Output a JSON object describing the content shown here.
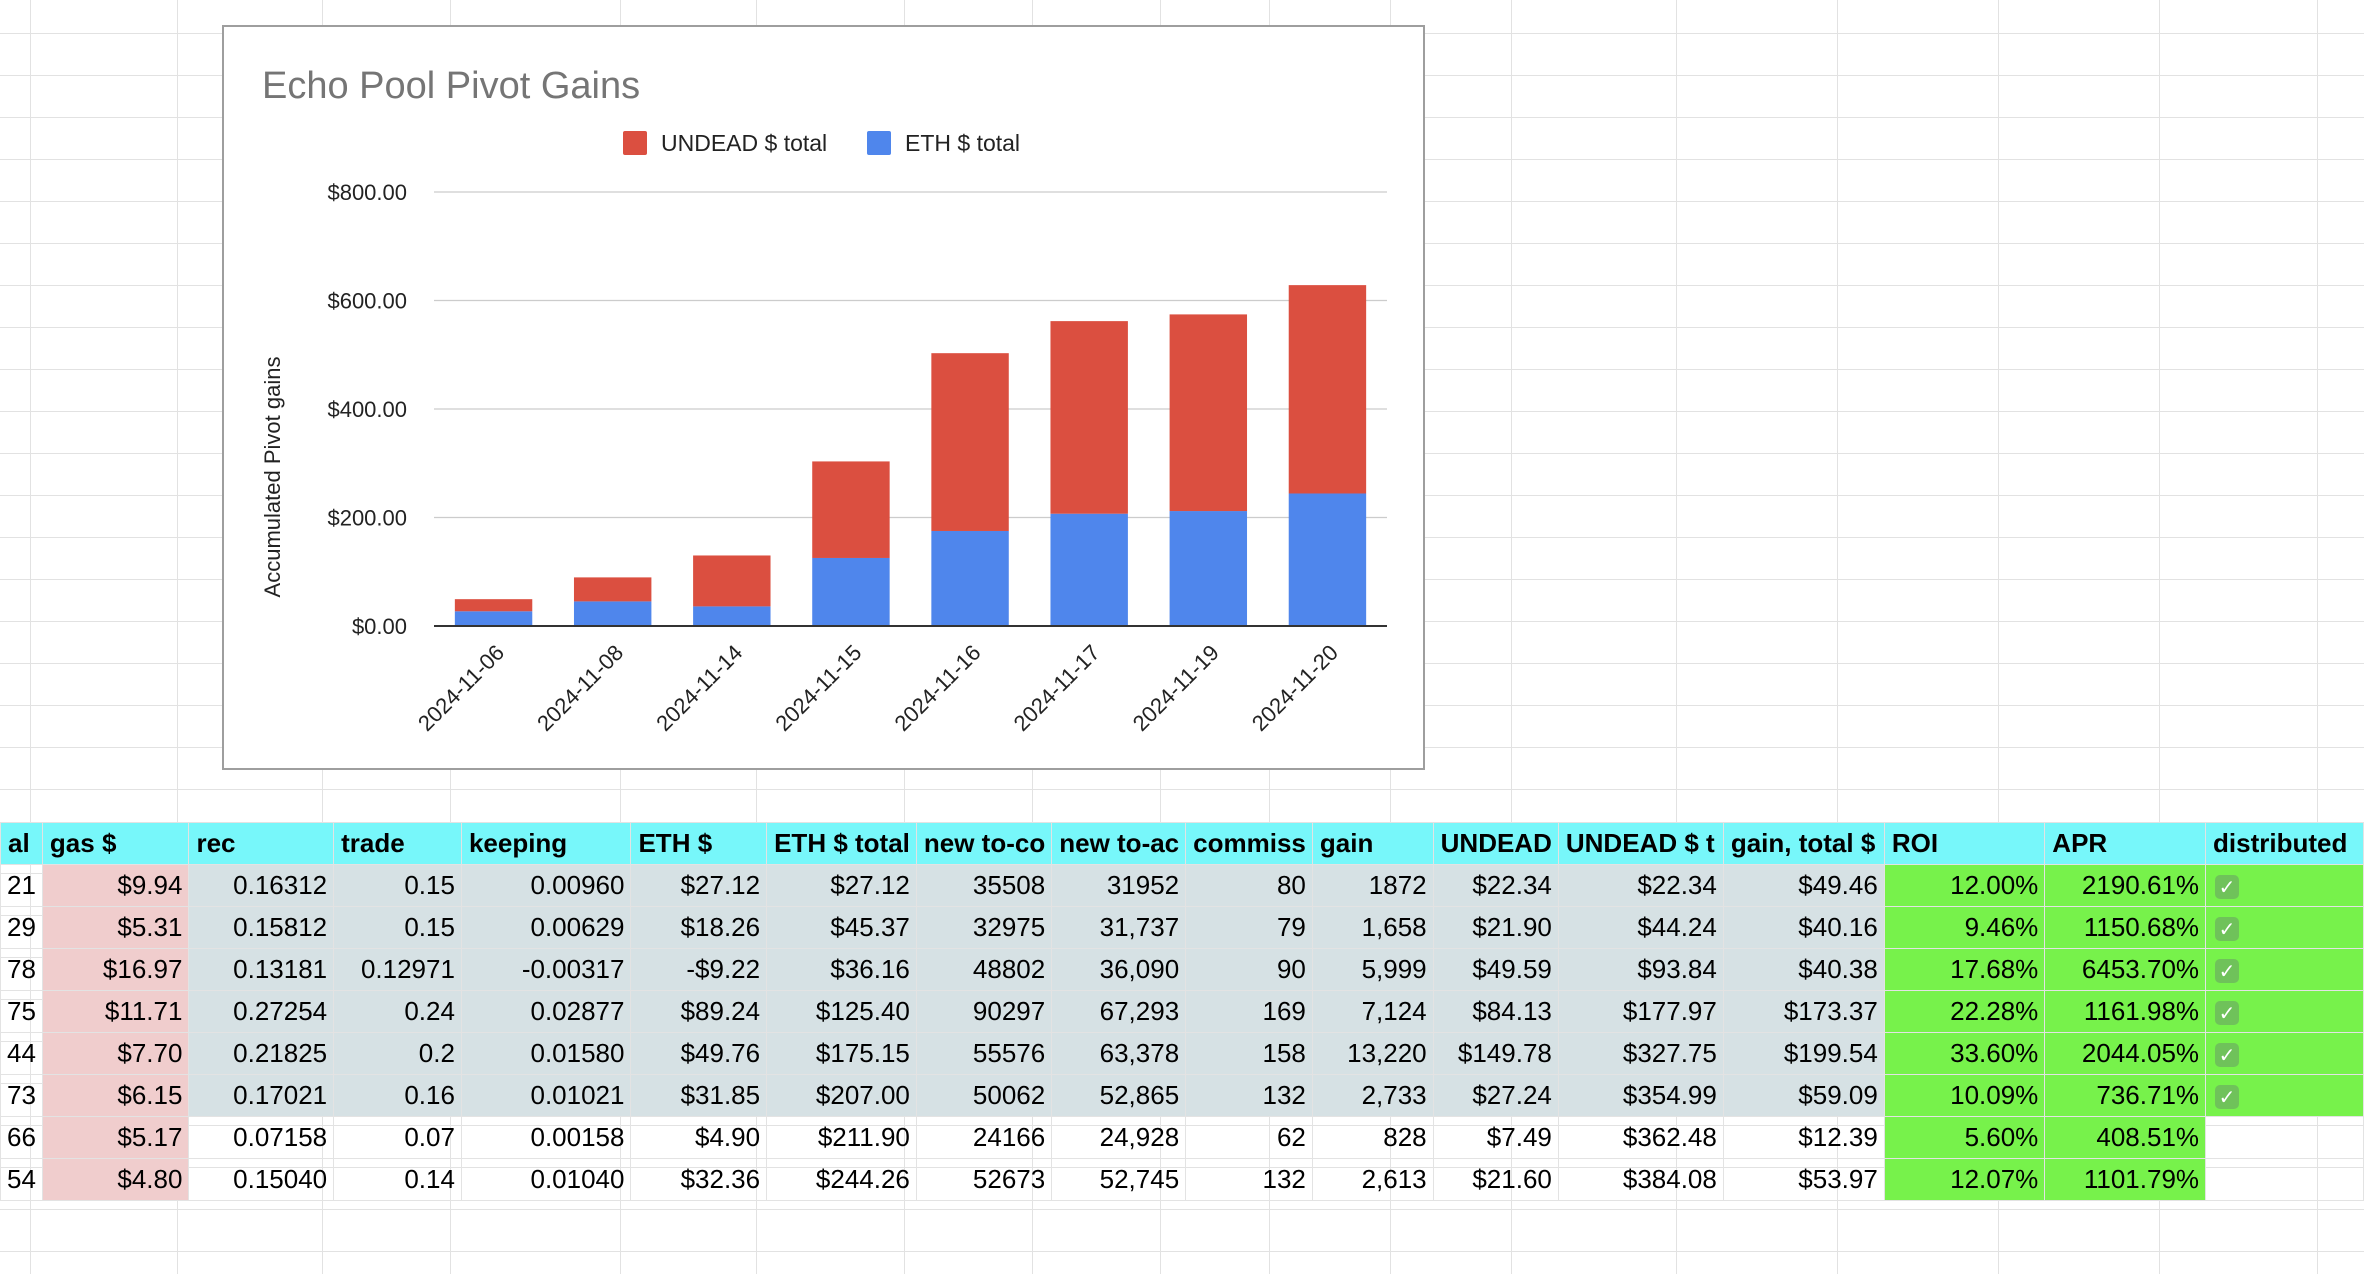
{
  "palette": {
    "undead_color": "#db4f40",
    "eth_color": "#4f86ec",
    "header_bg": "#77f7fa",
    "gas_bg": "#f0cdcd",
    "grey_bg": "#d6e1e4",
    "green_bg": "#77f24b"
  },
  "chart_data": {
    "type": "bar",
    "stacked": true,
    "title": "Echo Pool Pivot Gains",
    "ylabel": "Accumulated Pivot gains",
    "xlabel": "",
    "categories": [
      "2024-11-06",
      "2024-11-08",
      "2024-11-14",
      "2024-11-15",
      "2024-11-16",
      "2024-11-17",
      "2024-11-19",
      "2024-11-20"
    ],
    "series": [
      {
        "name": "ETH $ total",
        "color": "#4f86ec",
        "values": [
          27.12,
          45.37,
          36.16,
          125.4,
          175.15,
          207.0,
          211.9,
          244.26
        ]
      },
      {
        "name": "UNDEAD $ total",
        "color": "#db4f40",
        "values": [
          22.34,
          44.24,
          93.84,
          177.97,
          327.75,
          354.99,
          362.48,
          384.08
        ]
      }
    ],
    "legend_order": [
      "UNDEAD $ total",
      "ETH $ total"
    ],
    "legend_position": "top",
    "ylim": [
      0,
      800
    ],
    "yticks": [
      "$0.00",
      "$200.00",
      "$400.00",
      "$600.00",
      "$800.00"
    ],
    "grid": true
  },
  "table": {
    "headers": [
      "al",
      "gas $",
      "rec",
      "trade",
      "keeping",
      "ETH $",
      "ETH $ total",
      "new to-co",
      "new to-ac",
      "commiss",
      "gain",
      "UNDEAD",
      "UNDEAD $ t",
      "gain, total $",
      "ROI",
      "APR",
      "distributed"
    ],
    "rows": [
      {
        "col0": "21",
        "gas": "$9.94",
        "rec": "0.16312",
        "trade": "0.15",
        "keeping": "0.00960",
        "eth": "$27.12",
        "eth_total": "$27.12",
        "new_to_co": "35508",
        "new_to_ac": "31952",
        "commiss": "80",
        "gain": "1872",
        "undead": "$22.34",
        "undead_total": "$22.34",
        "gain_total": "$49.46",
        "roi": "12.00%",
        "apr": "2190.61%",
        "distributed": true
      },
      {
        "col0": "29",
        "gas": "$5.31",
        "rec": "0.15812",
        "trade": "0.15",
        "keeping": "0.00629",
        "eth": "$18.26",
        "eth_total": "$45.37",
        "new_to_co": "32975",
        "new_to_ac": "31,737",
        "commiss": "79",
        "gain": "1,658",
        "undead": "$21.90",
        "undead_total": "$44.24",
        "gain_total": "$40.16",
        "roi": "9.46%",
        "apr": "1150.68%",
        "distributed": true
      },
      {
        "col0": "78",
        "gas": "$16.97",
        "rec": "0.13181",
        "trade": "0.12971",
        "keeping": "-0.00317",
        "eth": "-$9.22",
        "eth_total": "$36.16",
        "new_to_co": "48802",
        "new_to_ac": "36,090",
        "commiss": "90",
        "gain": "5,999",
        "undead": "$49.59",
        "undead_total": "$93.84",
        "gain_total": "$40.38",
        "roi": "17.68%",
        "apr": "6453.70%",
        "distributed": true
      },
      {
        "col0": "75",
        "gas": "$11.71",
        "rec": "0.27254",
        "trade": "0.24",
        "keeping": "0.02877",
        "eth": "$89.24",
        "eth_total": "$125.40",
        "new_to_co": "90297",
        "new_to_ac": "67,293",
        "commiss": "169",
        "gain": "7,124",
        "undead": "$84.13",
        "undead_total": "$177.97",
        "gain_total": "$173.37",
        "roi": "22.28%",
        "apr": "1161.98%",
        "distributed": true
      },
      {
        "col0": "44",
        "gas": "$7.70",
        "rec": "0.21825",
        "trade": "0.2",
        "keeping": "0.01580",
        "eth": "$49.76",
        "eth_total": "$175.15",
        "new_to_co": "55576",
        "new_to_ac": "63,378",
        "commiss": "158",
        "gain": "13,220",
        "undead": "$149.78",
        "undead_total": "$327.75",
        "gain_total": "$199.54",
        "roi": "33.60%",
        "apr": "2044.05%",
        "distributed": true
      },
      {
        "col0": "73",
        "gas": "$6.15",
        "rec": "0.17021",
        "trade": "0.16",
        "keeping": "0.01021",
        "eth": "$31.85",
        "eth_total": "$207.00",
        "new_to_co": "50062",
        "new_to_ac": "52,865",
        "commiss": "132",
        "gain": "2,733",
        "undead": "$27.24",
        "undead_total": "$354.99",
        "gain_total": "$59.09",
        "roi": "10.09%",
        "apr": "736.71%",
        "distributed": true
      },
      {
        "col0": "66",
        "gas": "$5.17",
        "rec": "0.07158",
        "trade": "0.07",
        "keeping": "0.00158",
        "eth": "$4.90",
        "eth_total": "$211.90",
        "new_to_co": "24166",
        "new_to_ac": "24,928",
        "commiss": "62",
        "gain": "828",
        "undead": "$7.49",
        "undead_total": "$362.48",
        "gain_total": "$12.39",
        "roi": "5.60%",
        "apr": "408.51%",
        "distributed": false
      },
      {
        "col0": "54",
        "gas": "$4.80",
        "rec": "0.15040",
        "trade": "0.14",
        "keeping": "0.01040",
        "eth": "$32.36",
        "eth_total": "$244.26",
        "new_to_co": "52673",
        "new_to_ac": "52,745",
        "commiss": "132",
        "gain": "2,613",
        "undead": "$21.60",
        "undead_total": "$384.08",
        "gain_total": "$53.97",
        "roi": "12.07%",
        "apr": "1101.79%",
        "distributed": false
      }
    ]
  }
}
